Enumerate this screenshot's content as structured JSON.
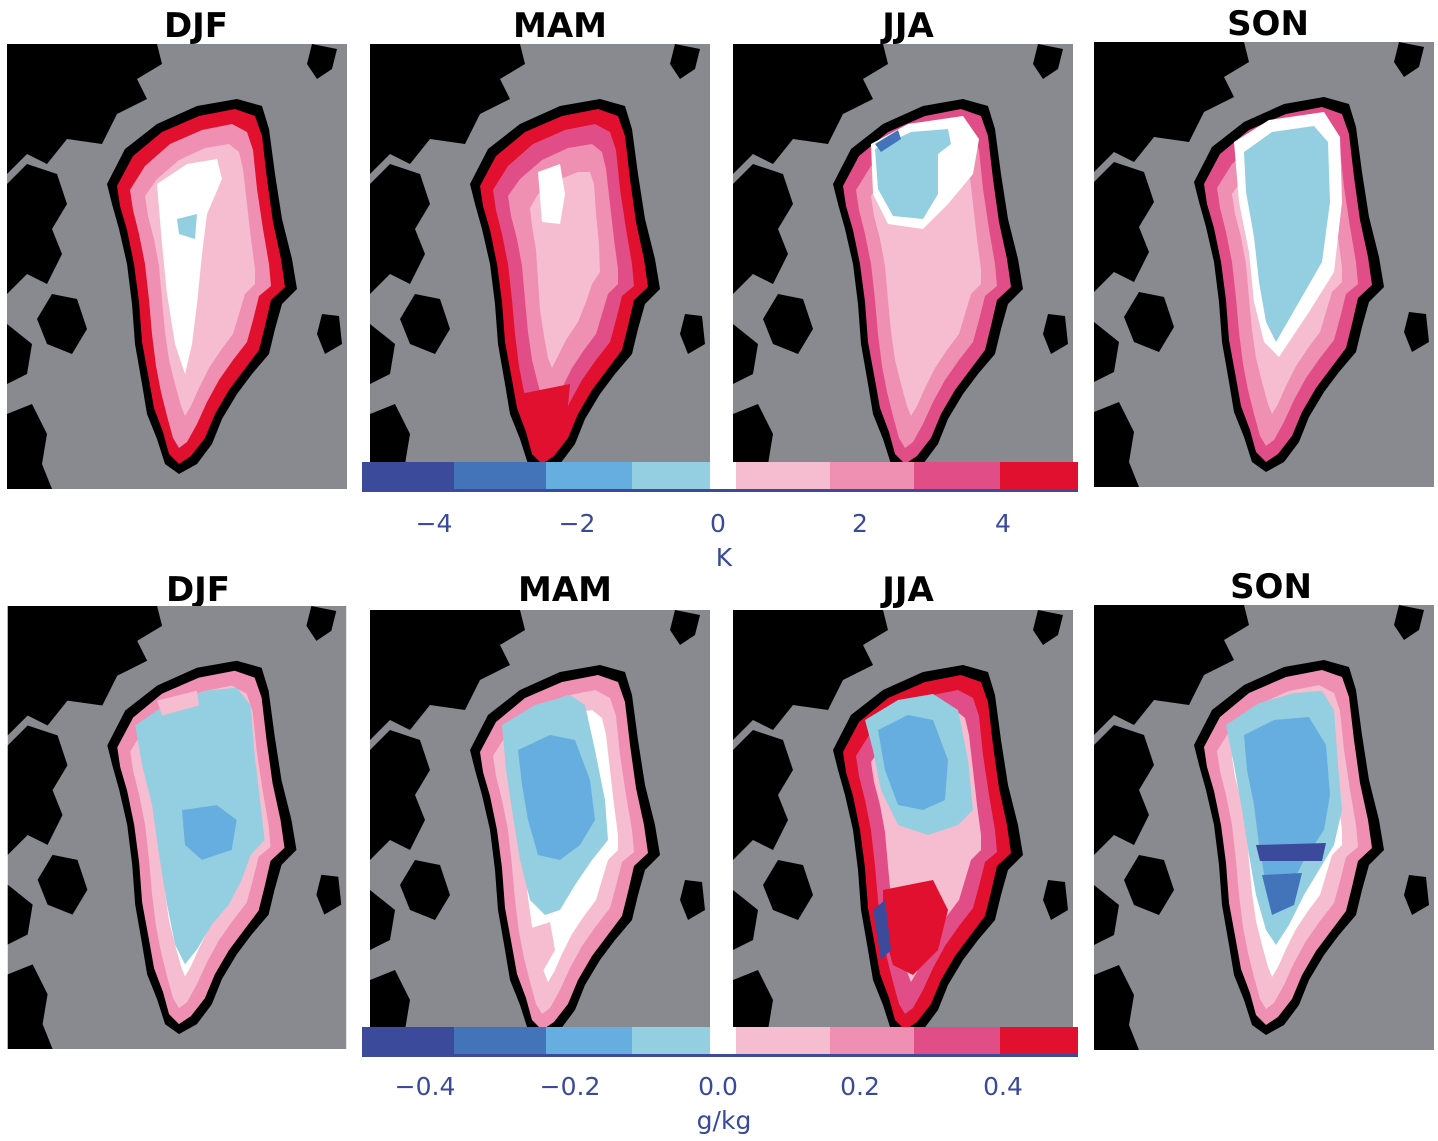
{
  "row1": {
    "titles": [
      "DJF",
      "MAM",
      "JJA",
      "SON"
    ],
    "colorbar": {
      "ticks": [
        "−4",
        "−2",
        "0",
        "2",
        "4"
      ],
      "unit": "K"
    }
  },
  "row2": {
    "titles": [
      "DJF",
      "MAM",
      "JJA",
      "SON"
    ],
    "colorbar": {
      "ticks": [
        "−0.4",
        "−0.2",
        "0.0",
        "0.2",
        "0.4"
      ],
      "unit": "g/kg"
    }
  },
  "colors": {
    "land": "#000000",
    "ocean": "#898a8f",
    "neutral": "#ffffff",
    "scale": [
      "#3b4a9b",
      "#4373b8",
      "#67aee0",
      "#93cfe0",
      "#ffffff",
      "#f6bdd0",
      "#ef8fb1",
      "#e14d87",
      "#e0102e"
    ]
  },
  "panels": [
    {
      "name": "djf-temperature",
      "dominant": "light-pink"
    },
    {
      "name": "mam-temperature",
      "dominant": "pink"
    },
    {
      "name": "jja-temperature",
      "dominant": "pink-and-light-blue"
    },
    {
      "name": "son-temperature",
      "dominant": "light-blue"
    },
    {
      "name": "djf-humidity",
      "dominant": "light-blue"
    },
    {
      "name": "mam-humidity",
      "dominant": "blue"
    },
    {
      "name": "jja-humidity",
      "dominant": "mixed"
    },
    {
      "name": "son-humidity",
      "dominant": "blue"
    }
  ]
}
